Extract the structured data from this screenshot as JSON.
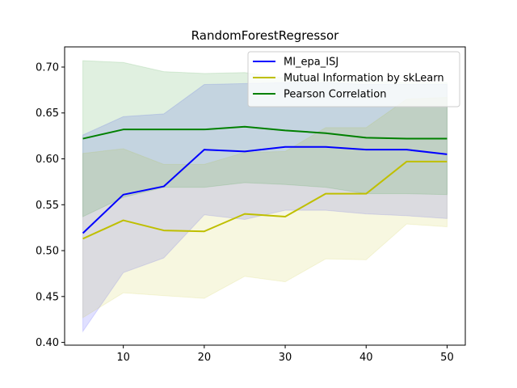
{
  "chart_data": {
    "type": "line",
    "title": "RandomForestRegressor",
    "xlabel": "",
    "ylabel": "",
    "x": [
      5,
      10,
      15,
      20,
      25,
      30,
      35,
      40,
      45,
      50
    ],
    "xlim": [
      2.75,
      52.25
    ],
    "ylim": [
      0.397,
      0.722
    ],
    "xticks": [
      10,
      20,
      30,
      40,
      50
    ],
    "yticks": [
      0.4,
      0.45,
      0.5,
      0.55,
      0.6,
      0.65,
      0.7
    ],
    "ytick_labels": [
      "0.40",
      "0.45",
      "0.50",
      "0.55",
      "0.60",
      "0.65",
      "0.70"
    ],
    "grid": false,
    "legend_position": "top-right",
    "series": [
      {
        "name": "MI_epa_ISJ",
        "color": "#0000ff",
        "values": [
          0.519,
          0.561,
          0.57,
          0.61,
          0.608,
          0.613,
          0.613,
          0.61,
          0.61,
          0.605
        ],
        "band_upper": [
          0.626,
          0.646,
          0.649,
          0.681,
          0.682,
          0.683,
          0.683,
          0.681,
          0.681,
          0.681
        ],
        "band_lower": [
          0.412,
          0.476,
          0.492,
          0.539,
          0.534,
          0.544,
          0.544,
          0.54,
          0.538,
          0.535
        ]
      },
      {
        "name": "Mutual Information by skLearn",
        "color": "#bfbf00",
        "values": [
          0.513,
          0.533,
          0.522,
          0.521,
          0.54,
          0.537,
          0.562,
          0.562,
          0.597,
          0.597
        ],
        "band_upper": [
          0.606,
          0.611,
          0.594,
          0.594,
          0.607,
          0.608,
          0.634,
          0.634,
          0.665,
          0.667
        ],
        "band_lower": [
          0.427,
          0.454,
          0.451,
          0.448,
          0.472,
          0.466,
          0.491,
          0.49,
          0.529,
          0.526
        ]
      },
      {
        "name": "Pearson Correlation",
        "color": "#008000",
        "values": [
          0.622,
          0.632,
          0.632,
          0.632,
          0.635,
          0.631,
          0.628,
          0.623,
          0.622,
          0.622
        ],
        "band_upper": [
          0.707,
          0.705,
          0.695,
          0.693,
          0.694,
          0.688,
          0.686,
          0.685,
          0.683,
          0.683
        ],
        "band_lower": [
          0.537,
          0.558,
          0.569,
          0.569,
          0.574,
          0.572,
          0.569,
          0.562,
          0.562,
          0.561
        ]
      }
    ]
  }
}
